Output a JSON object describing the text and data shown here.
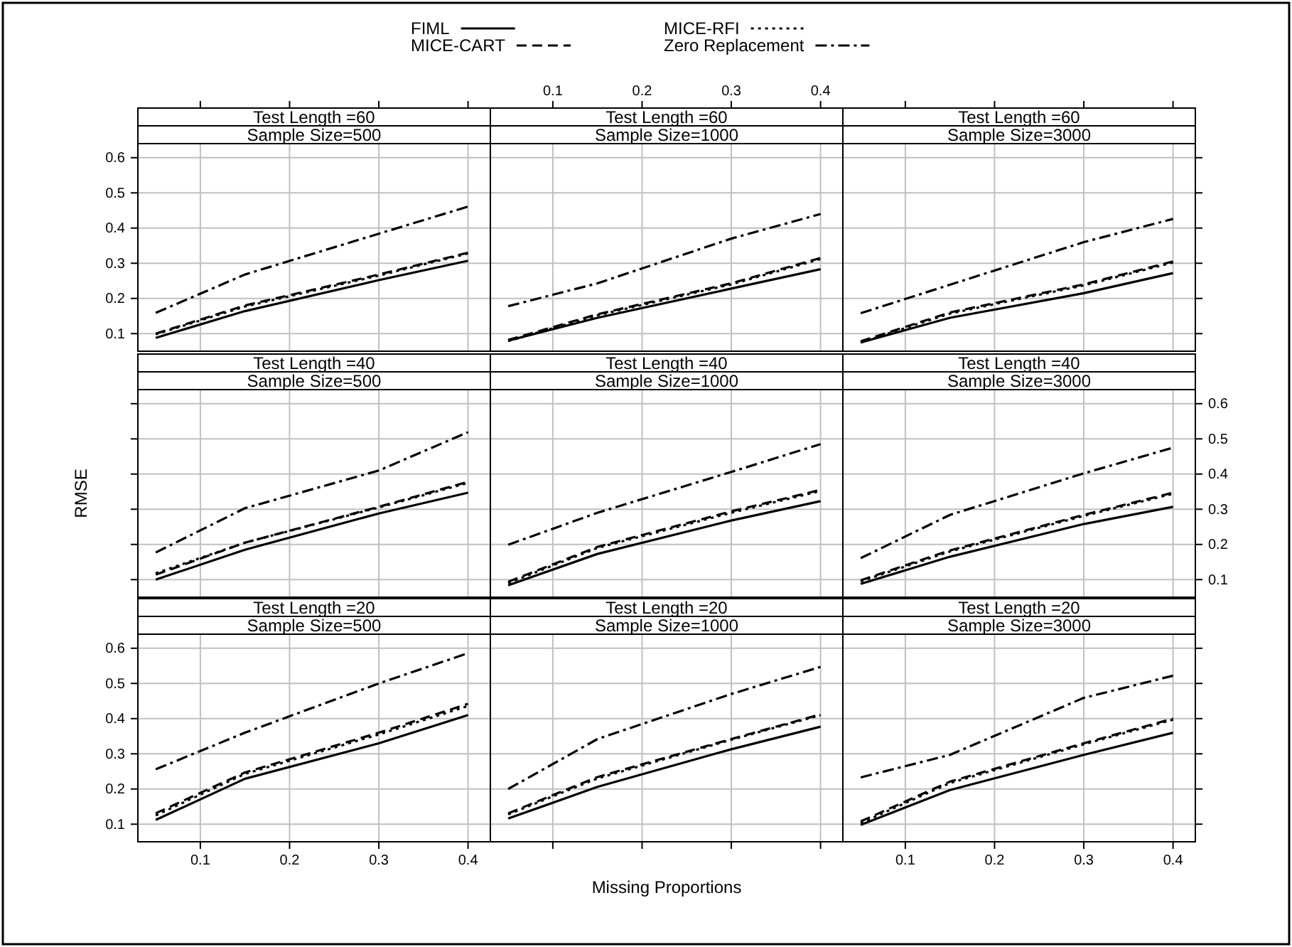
{
  "chart_data": [
    {
      "type": "line",
      "title": "Test Length =60",
      "subtitle": "Sample Size=500",
      "x": [
        0.05,
        0.15,
        0.3,
        0.4
      ],
      "xlim": [
        0.03,
        0.425
      ],
      "xticks": [
        0.1,
        0.2,
        0.3,
        0.4
      ],
      "ylim": [
        0.05,
        0.64
      ],
      "yticks": [
        0.1,
        0.2,
        0.3,
        0.4,
        0.5,
        0.6
      ],
      "grid": true,
      "tick_labels": "y",
      "legend": "top",
      "series": [
        {
          "name": "FIML",
          "color": "#000000",
          "line_style": "solid",
          "values": [
            0.088,
            0.164,
            0.252,
            0.307
          ]
        },
        {
          "name": "MICE-CART",
          "color": "#000000",
          "line_style": "dashed",
          "values": [
            0.1,
            0.18,
            0.268,
            0.33
          ]
        },
        {
          "name": "MICE-RFI",
          "color": "#000000",
          "line_style": "dotted",
          "values": [
            0.098,
            0.177,
            0.265,
            0.328
          ]
        },
        {
          "name": "Zero Replacement",
          "color": "#000000",
          "line_style": "dashdot",
          "values": [
            0.159,
            0.268,
            0.384,
            0.461
          ]
        }
      ]
    },
    {
      "type": "line",
      "title": "Test Length =60",
      "subtitle": "Sample Size=1000",
      "x": [
        0.05,
        0.15,
        0.3,
        0.4
      ],
      "xlim": [
        0.03,
        0.425
      ],
      "xticks": [
        0.1,
        0.2,
        0.3,
        0.4
      ],
      "ylim": [
        0.05,
        0.64
      ],
      "yticks": [
        0.1,
        0.2,
        0.3,
        0.4,
        0.5,
        0.6
      ],
      "grid": true,
      "tick_labels": "x",
      "series": [
        {
          "color": "#000000",
          "line_style": "solid",
          "values": [
            0.08,
            0.145,
            0.228,
            0.283
          ]
        },
        {
          "color": "#000000",
          "line_style": "dashed",
          "values": [
            0.082,
            0.155,
            0.243,
            0.315
          ]
        },
        {
          "color": "#000000",
          "line_style": "dotted",
          "values": [
            0.079,
            0.152,
            0.24,
            0.312
          ]
        },
        {
          "color": "#000000",
          "line_style": "dashdot",
          "values": [
            0.178,
            0.243,
            0.37,
            0.44
          ]
        }
      ]
    },
    {
      "type": "line",
      "title": "Test Length =60",
      "subtitle": "Sample Size=3000",
      "x": [
        0.05,
        0.15,
        0.3,
        0.4
      ],
      "xlim": [
        0.03,
        0.425
      ],
      "xticks": [
        0.1,
        0.2,
        0.3,
        0.4
      ],
      "ylim": [
        0.05,
        0.64
      ],
      "yticks": [
        0.1,
        0.2,
        0.3,
        0.4,
        0.5,
        0.6
      ],
      "grid": true,
      "tick_labels": false,
      "series": [
        {
          "color": "#000000",
          "line_style": "solid",
          "values": [
            0.075,
            0.145,
            0.215,
            0.272
          ]
        },
        {
          "color": "#000000",
          "line_style": "dashed",
          "values": [
            0.078,
            0.16,
            0.24,
            0.305
          ]
        },
        {
          "color": "#000000",
          "line_style": "dotted",
          "values": [
            0.075,
            0.157,
            0.237,
            0.302
          ]
        },
        {
          "color": "#000000",
          "line_style": "dashdot",
          "values": [
            0.158,
            0.239,
            0.36,
            0.426
          ]
        }
      ]
    },
    {
      "type": "line",
      "title": "Test Length =40",
      "subtitle": "Sample Size=500",
      "ylabel": "RMSE",
      "x": [
        0.05,
        0.15,
        0.3,
        0.4
      ],
      "xlim": [
        0.03,
        0.425
      ],
      "xticks": [
        0.1,
        0.2,
        0.3,
        0.4
      ],
      "ylim": [
        0.05,
        0.64
      ],
      "yticks": [
        0.1,
        0.2,
        0.3,
        0.4,
        0.5,
        0.6
      ],
      "grid": true,
      "tick_labels": false,
      "series": [
        {
          "color": "#000000",
          "line_style": "solid",
          "values": [
            0.1,
            0.185,
            0.288,
            0.347
          ]
        },
        {
          "color": "#000000",
          "line_style": "dashed",
          "values": [
            0.114,
            0.205,
            0.307,
            0.378
          ]
        },
        {
          "color": "#000000",
          "line_style": "dotted",
          "values": [
            0.118,
            0.205,
            0.305,
            0.375
          ]
        },
        {
          "color": "#000000",
          "line_style": "dashdot",
          "values": [
            0.177,
            0.303,
            0.41,
            0.519
          ]
        }
      ]
    },
    {
      "type": "line",
      "title": "Test Length =40",
      "subtitle": "Sample Size=1000",
      "x": [
        0.05,
        0.15,
        0.3,
        0.4
      ],
      "xlim": [
        0.03,
        0.425
      ],
      "xticks": [
        0.1,
        0.2,
        0.3,
        0.4
      ],
      "ylim": [
        0.05,
        0.64
      ],
      "yticks": [
        0.1,
        0.2,
        0.3,
        0.4,
        0.5,
        0.6
      ],
      "grid": true,
      "tick_labels": false,
      "series": [
        {
          "color": "#000000",
          "line_style": "solid",
          "values": [
            0.084,
            0.173,
            0.268,
            0.323
          ]
        },
        {
          "color": "#000000",
          "line_style": "dashed",
          "values": [
            0.094,
            0.193,
            0.294,
            0.355
          ]
        },
        {
          "color": "#000000",
          "line_style": "dotted",
          "values": [
            0.09,
            0.19,
            0.29,
            0.352
          ]
        },
        {
          "color": "#000000",
          "line_style": "dashdot",
          "values": [
            0.199,
            0.29,
            0.406,
            0.485
          ]
        }
      ]
    },
    {
      "type": "line",
      "title": "Test Length =40",
      "subtitle": "Sample Size=3000",
      "x": [
        0.05,
        0.15,
        0.3,
        0.4
      ],
      "xlim": [
        0.03,
        0.425
      ],
      "xticks": [
        0.1,
        0.2,
        0.3,
        0.4
      ],
      "ylim": [
        0.05,
        0.64
      ],
      "yticks": [
        0.1,
        0.2,
        0.3,
        0.4,
        0.5,
        0.6
      ],
      "grid": true,
      "tick_labels": "y",
      "series": [
        {
          "color": "#000000",
          "line_style": "solid",
          "values": [
            0.088,
            0.165,
            0.258,
            0.307
          ]
        },
        {
          "color": "#000000",
          "line_style": "dashed",
          "values": [
            0.098,
            0.183,
            0.284,
            0.347
          ]
        },
        {
          "color": "#000000",
          "line_style": "dotted",
          "values": [
            0.095,
            0.18,
            0.281,
            0.344
          ]
        },
        {
          "color": "#000000",
          "line_style": "dashdot",
          "values": [
            0.161,
            0.284,
            0.402,
            0.475
          ]
        }
      ]
    },
    {
      "type": "line",
      "title": "Test Length =20",
      "subtitle": "Sample Size=500",
      "x": [
        0.05,
        0.15,
        0.3,
        0.4
      ],
      "xlim": [
        0.03,
        0.425
      ],
      "xticks": [
        0.1,
        0.2,
        0.3,
        0.4
      ],
      "ylim": [
        0.05,
        0.64
      ],
      "yticks": [
        0.1,
        0.2,
        0.3,
        0.4,
        0.5,
        0.6
      ],
      "grid": true,
      "series": [
        {
          "color": "#000000",
          "line_style": "solid",
          "values": [
            0.112,
            0.229,
            0.33,
            0.41
          ]
        },
        {
          "color": "#000000",
          "line_style": "dashed",
          "values": [
            0.131,
            0.247,
            0.36,
            0.442
          ]
        },
        {
          "color": "#000000",
          "line_style": "dotted",
          "values": [
            0.125,
            0.243,
            0.355,
            0.436
          ]
        },
        {
          "color": "#000000",
          "line_style": "dashdot",
          "values": [
            0.256,
            0.36,
            0.5,
            0.586
          ]
        }
      ]
    },
    {
      "type": "line",
      "title": "Test Length =20",
      "subtitle": "Sample Size=1000",
      "xlabel": "Missing Proportions",
      "x": [
        0.05,
        0.15,
        0.3,
        0.4
      ],
      "xlim": [
        0.03,
        0.425
      ],
      "xticks": [
        0.1,
        0.2,
        0.3,
        0.4
      ],
      "ylim": [
        0.05,
        0.64
      ],
      "yticks": [
        0.1,
        0.2,
        0.3,
        0.4,
        0.5,
        0.6
      ],
      "grid": true,
      "tick_labels": false,
      "series": [
        {
          "color": "#000000",
          "line_style": "solid",
          "values": [
            0.116,
            0.206,
            0.313,
            0.377
          ]
        },
        {
          "color": "#000000",
          "line_style": "dashed",
          "values": [
            0.131,
            0.234,
            0.342,
            0.412
          ]
        },
        {
          "color": "#000000",
          "line_style": "dotted",
          "values": [
            0.128,
            0.23,
            0.34,
            0.41
          ]
        },
        {
          "color": "#000000",
          "line_style": "dashdot",
          "values": [
            0.2,
            0.342,
            0.47,
            0.547
          ]
        }
      ]
    },
    {
      "type": "line",
      "title": "Test Length =20",
      "subtitle": "Sample Size=3000",
      "x": [
        0.05,
        0.15,
        0.3,
        0.4
      ],
      "xlim": [
        0.03,
        0.425
      ],
      "xticks": [
        0.1,
        0.2,
        0.3,
        0.4
      ],
      "ylim": [
        0.05,
        0.64
      ],
      "yticks": [
        0.1,
        0.2,
        0.3,
        0.4,
        0.5,
        0.6
      ],
      "grid": true,
      "tick_labels": "x",
      "series": [
        {
          "color": "#000000",
          "line_style": "solid",
          "values": [
            0.098,
            0.197,
            0.297,
            0.36
          ]
        },
        {
          "color": "#000000",
          "line_style": "dashed",
          "values": [
            0.108,
            0.221,
            0.33,
            0.4
          ]
        },
        {
          "color": "#000000",
          "line_style": "dotted",
          "values": [
            0.103,
            0.217,
            0.327,
            0.397
          ]
        },
        {
          "color": "#000000",
          "line_style": "dashdot",
          "values": [
            0.233,
            0.297,
            0.459,
            0.522
          ]
        }
      ]
    }
  ]
}
